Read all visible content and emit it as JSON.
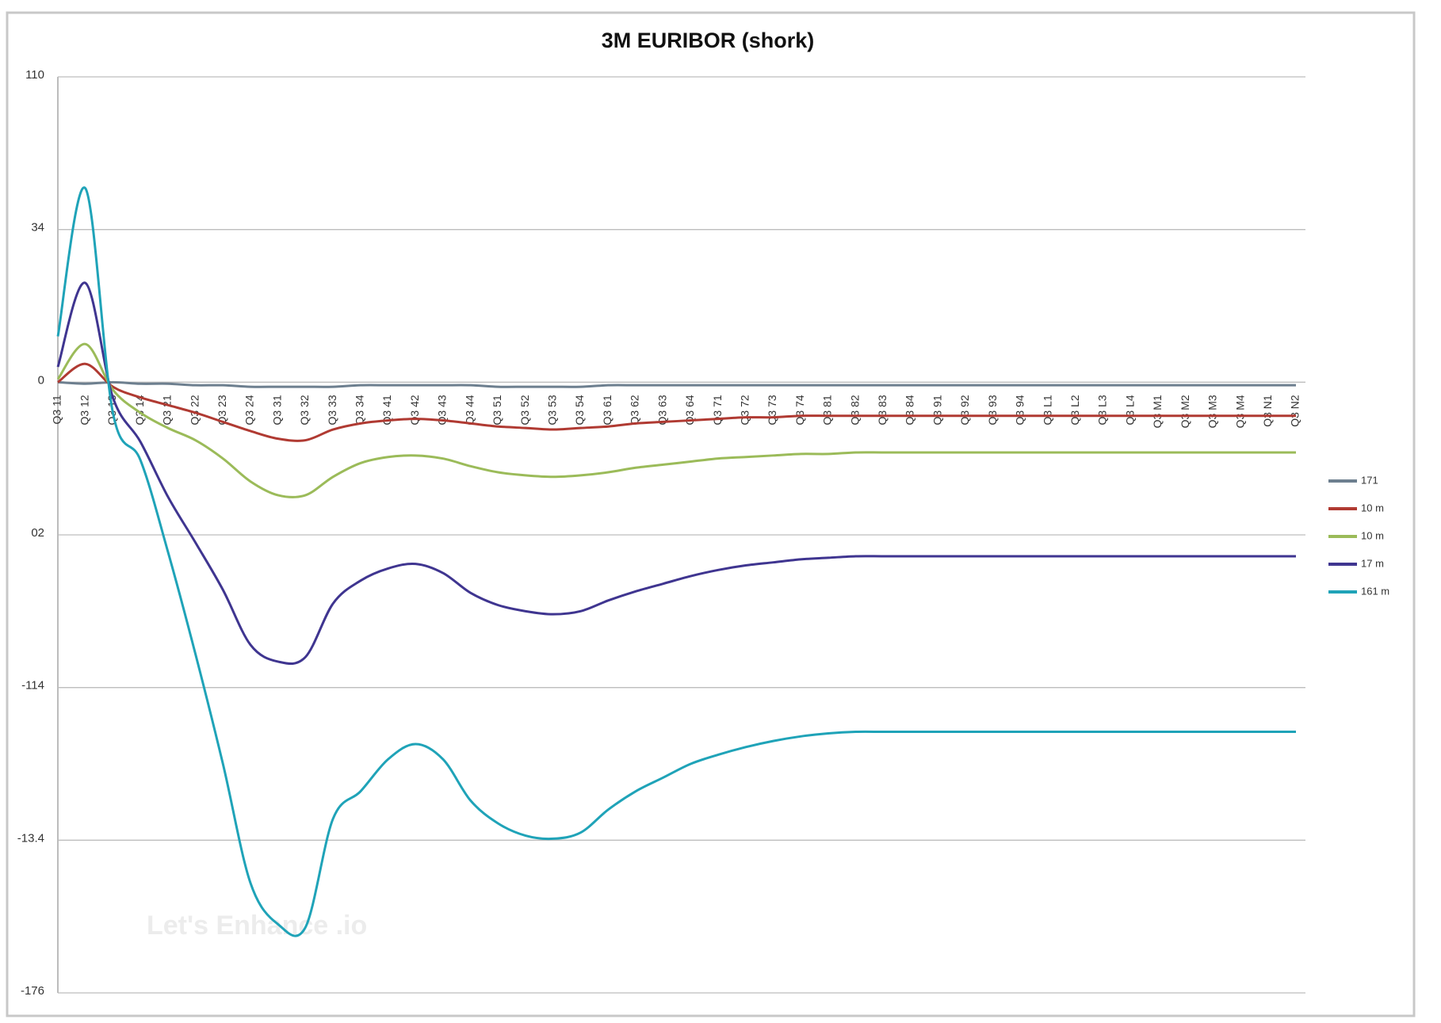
{
  "chart_data": {
    "type": "line",
    "title": "3M EURIBOR (shork)",
    "watermark": "Let's Enhance .io",
    "categories": [
      "Q3 11",
      "Q3 12",
      "Q3 13",
      "Q3 14",
      "Q3 21",
      "Q3 22",
      "Q3 23",
      "Q3 24",
      "Q3 31",
      "Q3 32",
      "Q3 33",
      "Q3 34",
      "Q3 41",
      "Q3 42",
      "Q3 43",
      "Q3 44",
      "Q3 51",
      "Q3 52",
      "Q3 53",
      "Q3 54",
      "Q3 61",
      "Q3 62",
      "Q3 63",
      "Q3 64",
      "Q3 71",
      "Q3 72",
      "Q3 73",
      "Q3 74",
      "Q3 81",
      "Q3 82",
      "Q3 83",
      "Q3 84",
      "Q3 91",
      "Q3 92",
      "Q3 93",
      "Q3 94",
      "Q3 L1",
      "Q3 L2",
      "Q3 L3",
      "Q3 L4",
      "Q3 M1",
      "Q3 M2",
      "Q3 M3",
      "Q3 M4",
      "Q3 N1",
      "Q3 N2"
    ],
    "ylim": [
      -4,
      2
    ],
    "yticks": [
      {
        "value": 2,
        "label": "110"
      },
      {
        "value": 1,
        "label": "34"
      },
      0,
      {
        "value": -1,
        "label": "02"
      },
      {
        "value": -2,
        "label": "-114"
      },
      {
        "value": -3,
        "label": "-13.4"
      },
      {
        "value": -4,
        "label": "-176"
      }
    ],
    "grid": true,
    "legend": "right",
    "series": [
      {
        "name": "171",
        "color": "#6d7f8f",
        "values": [
          0,
          -0.01,
          0,
          -0.01,
          -0.01,
          -0.02,
          -0.02,
          -0.03,
          -0.03,
          -0.03,
          -0.03,
          -0.02,
          -0.02,
          -0.02,
          -0.02,
          -0.02,
          -0.03,
          -0.03,
          -0.03,
          -0.03,
          -0.02,
          -0.02,
          -0.02,
          -0.02,
          -0.02,
          -0.02,
          -0.02,
          -0.02,
          -0.02,
          -0.02,
          -0.02,
          -0.02,
          -0.02,
          -0.02,
          -0.02,
          -0.02,
          -0.02,
          -0.02,
          -0.02,
          -0.02,
          -0.02,
          -0.02,
          -0.02,
          -0.02,
          -0.02,
          -0.02
        ]
      },
      {
        "name": "10 m",
        "color": "#b03a32",
        "values": [
          0,
          0.12,
          -0.03,
          -0.1,
          -0.15,
          -0.2,
          -0.26,
          -0.32,
          -0.37,
          -0.38,
          -0.31,
          -0.27,
          -0.25,
          -0.24,
          -0.25,
          -0.27,
          -0.29,
          -0.3,
          -0.31,
          -0.3,
          -0.29,
          -0.27,
          -0.26,
          -0.25,
          -0.24,
          -0.23,
          -0.23,
          -0.22,
          -0.22,
          -0.22,
          -0.22,
          -0.22,
          -0.22,
          -0.22,
          -0.22,
          -0.22,
          -0.22,
          -0.22,
          -0.22,
          -0.22,
          -0.22,
          -0.22,
          -0.22,
          -0.22,
          -0.22,
          -0.22
        ]
      },
      {
        "name": "10 m",
        "color": "#9bbb59",
        "values": [
          0.02,
          0.25,
          -0.05,
          -0.2,
          -0.3,
          -0.38,
          -0.5,
          -0.65,
          -0.74,
          -0.74,
          -0.62,
          -0.53,
          -0.49,
          -0.48,
          -0.5,
          -0.55,
          -0.59,
          -0.61,
          -0.62,
          -0.61,
          -0.59,
          -0.56,
          -0.54,
          -0.52,
          -0.5,
          -0.49,
          -0.48,
          -0.47,
          -0.47,
          -0.46,
          -0.46,
          -0.46,
          -0.46,
          -0.46,
          -0.46,
          -0.46,
          -0.46,
          -0.46,
          -0.46,
          -0.46,
          -0.46,
          -0.46,
          -0.46,
          -0.46,
          -0.46,
          -0.46
        ]
      },
      {
        "name": "17 m",
        "color": "#3f3590",
        "values": [
          0.1,
          0.65,
          -0.1,
          -0.39,
          -0.75,
          -1.05,
          -1.36,
          -1.72,
          -1.83,
          -1.8,
          -1.45,
          -1.3,
          -1.22,
          -1.19,
          -1.25,
          -1.38,
          -1.46,
          -1.5,
          -1.52,
          -1.5,
          -1.43,
          -1.37,
          -1.32,
          -1.27,
          -1.23,
          -1.2,
          -1.18,
          -1.16,
          -1.15,
          -1.14,
          -1.14,
          -1.14,
          -1.14,
          -1.14,
          -1.14,
          -1.14,
          -1.14,
          -1.14,
          -1.14,
          -1.14,
          -1.14,
          -1.14,
          -1.14,
          -1.14,
          -1.14,
          -1.14
        ]
      },
      {
        "name": "161 m",
        "color": "#1fa3b8",
        "values": [
          0.3,
          1.27,
          -0.2,
          -0.51,
          -1.11,
          -1.78,
          -2.5,
          -3.28,
          -3.55,
          -3.57,
          -2.86,
          -2.68,
          -2.47,
          -2.37,
          -2.47,
          -2.74,
          -2.89,
          -2.97,
          -2.99,
          -2.95,
          -2.8,
          -2.68,
          -2.59,
          -2.5,
          -2.44,
          -2.39,
          -2.35,
          -2.32,
          -2.3,
          -2.29,
          -2.29,
          -2.29,
          -2.29,
          -2.29,
          -2.29,
          -2.29,
          -2.29,
          -2.29,
          -2.29,
          -2.29,
          -2.29,
          -2.29,
          -2.29,
          -2.29,
          -2.29,
          -2.29
        ]
      }
    ]
  }
}
